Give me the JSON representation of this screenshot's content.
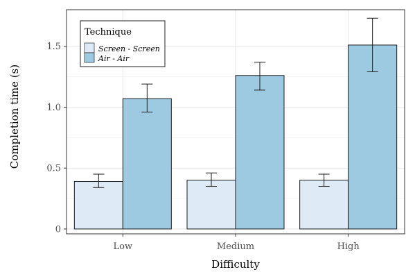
{
  "chart_data": {
    "type": "bar",
    "xlabel": "Difficulty",
    "ylabel": "Completion time (s)",
    "categories": [
      "Low",
      "Medium",
      "High"
    ],
    "ylim": [
      -0.04,
      1.8
    ],
    "yticks": [
      0,
      0.5,
      1.0,
      1.5
    ],
    "ytick_labels": [
      "0",
      "0.5",
      "1.0",
      "1.5"
    ],
    "grid": true,
    "legend": {
      "title": "Technique",
      "position": "top-left"
    },
    "series": [
      {
        "name": "Screen - Screen",
        "color": "#deebf7",
        "values": [
          0.39,
          0.4,
          0.4
        ],
        "error_low": [
          0.34,
          0.35,
          0.35
        ],
        "error_high": [
          0.45,
          0.46,
          0.45
        ]
      },
      {
        "name": "Air - Air",
        "color": "#9ecae1",
        "values": [
          1.07,
          1.26,
          1.51
        ],
        "error_low": [
          0.96,
          1.14,
          1.29
        ],
        "error_high": [
          1.19,
          1.37,
          1.73
        ]
      }
    ]
  }
}
